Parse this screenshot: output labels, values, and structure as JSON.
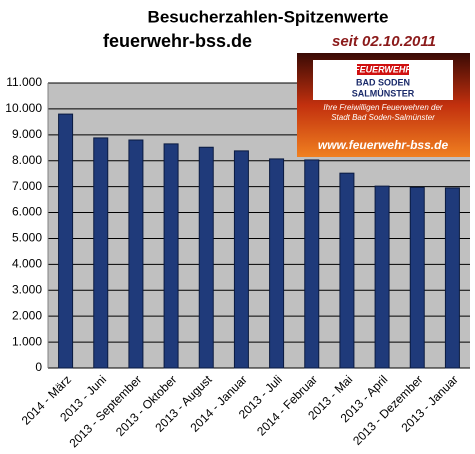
{
  "chart_data": {
    "type": "bar",
    "title": "Besucherzahlen-Spitzenwerte",
    "subtitle": "feuerwehr-bss.de",
    "annotations": [
      "seit 02.10.2011",
      "FEUERWEHR",
      "BAD SODEN",
      "SALMÜNSTER",
      "Ihre Freiwilligen Feuerwehren der",
      "Stadt Bad Soden-Salmünster",
      "www.feuerwehr-bss.de"
    ],
    "categories": [
      "2014 - März",
      "2013 - Juni",
      "2013 - September",
      "2013 - Oktober",
      "2013 - August",
      "2014 - Januar",
      "2013 - Juli",
      "2014 - Februar",
      "2013 - Mai",
      "2013 - April",
      "2013 - Dezember",
      "2013 - Januar"
    ],
    "values": [
      9800,
      8880,
      8800,
      8650,
      8520,
      8380,
      8070,
      8030,
      7520,
      7020,
      6970,
      6950
    ],
    "color": "#1f3a7a",
    "ylim": [
      0,
      11000
    ],
    "yticks": [
      0,
      {
        "value": 1000,
        "label": "1.000"
      },
      {
        "value": 2000,
        "label": "2.000"
      },
      {
        "value": 3000,
        "label": "3.000"
      },
      {
        "value": 4000,
        "label": "4.000"
      },
      {
        "value": 5000,
        "label": "5.000"
      },
      {
        "value": 6000,
        "label": "6.000"
      },
      {
        "value": 7000,
        "label": "7.000"
      },
      {
        "value": 8000,
        "label": "8.000"
      },
      {
        "value": 9000,
        "label": "9.000"
      },
      {
        "value": 10000,
        "label": "10.000"
      },
      {
        "value": 11000,
        "label": "11.000"
      }
    ],
    "grid": true
  }
}
